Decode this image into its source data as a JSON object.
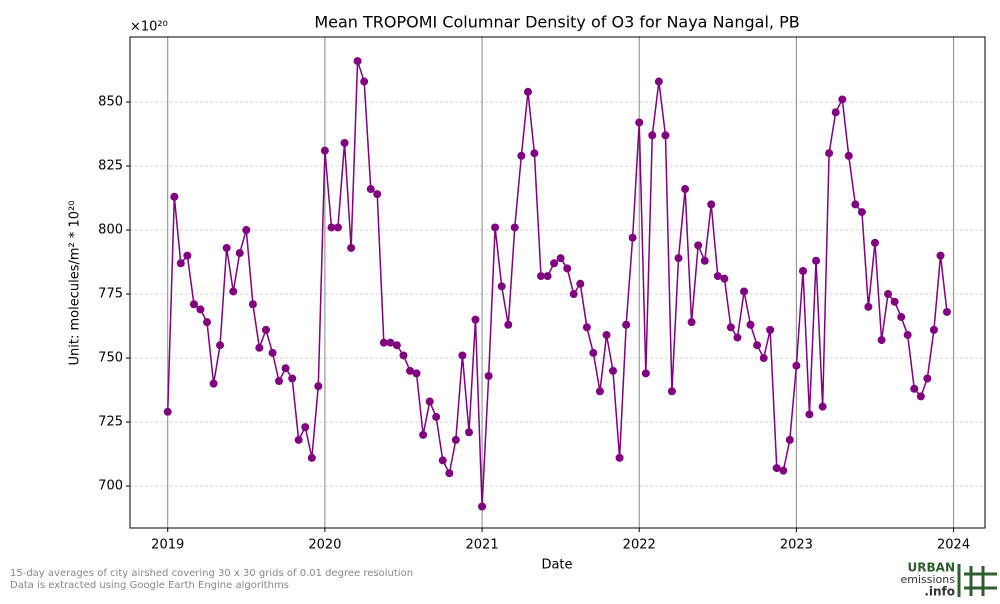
{
  "chart_data": {
    "type": "line",
    "title": "Mean TROPOMI Columnar Density of O3 for Naya Nangal, PB",
    "x_label": "Date",
    "y_label": "Unit: molecules/m² * 10²⁰",
    "y_offset_label": "×10²⁰",
    "footnote": [
      "15-day averages of city airshed covering 30 x 30 grids of 0.01 degree resolution",
      "Data is extracted using Google Earth Engine algorithms"
    ],
    "logo": [
      "URBAN",
      "emissions",
      ".info"
    ],
    "xlim": [
      2018.76,
      2024.2
    ],
    "ylim": [
      683.6,
      875.4
    ],
    "xticks": [
      2019,
      2020,
      2021,
      2022,
      2023,
      2024
    ],
    "yticks": [
      700,
      725,
      750,
      775,
      800,
      825,
      850
    ],
    "grid": true,
    "series": [
      {
        "name": "O3",
        "color": "#800080",
        "x": [
          2019,
          2019.042,
          2019.083,
          2019.125,
          2019.167,
          2019.208,
          2019.25,
          2019.292,
          2019.333,
          2019.375,
          2019.417,
          2019.458,
          2019.5,
          2019.542,
          2019.583,
          2019.625,
          2019.667,
          2019.708,
          2019.75,
          2019.792,
          2019.833,
          2019.875,
          2019.917,
          2019.958,
          2020,
          2020.042,
          2020.083,
          2020.125,
          2020.167,
          2020.208,
          2020.25,
          2020.292,
          2020.333,
          2020.375,
          2020.417,
          2020.458,
          2020.5,
          2020.542,
          2020.583,
          2020.625,
          2020.667,
          2020.708,
          2020.75,
          2020.792,
          2020.833,
          2020.875,
          2020.917,
          2020.958,
          2021,
          2021.042,
          2021.083,
          2021.125,
          2021.167,
          2021.208,
          2021.25,
          2021.292,
          2021.333,
          2021.375,
          2021.417,
          2021.458,
          2021.5,
          2021.542,
          2021.583,
          2021.625,
          2021.667,
          2021.708,
          2021.75,
          2021.792,
          2021.833,
          2021.875,
          2021.917,
          2021.958,
          2022,
          2022.042,
          2022.083,
          2022.125,
          2022.167,
          2022.208,
          2022.25,
          2022.292,
          2022.333,
          2022.375,
          2022.417,
          2022.458,
          2022.5,
          2022.542,
          2022.583,
          2022.625,
          2022.667,
          2022.708,
          2022.75,
          2022.792,
          2022.833,
          2022.875,
          2022.917,
          2022.958,
          2023,
          2023.042,
          2023.083,
          2023.125,
          2023.167,
          2023.208,
          2023.25,
          2023.292,
          2023.333,
          2023.375,
          2023.417,
          2023.458,
          2023.5,
          2023.542,
          2023.583,
          2023.625,
          2023.667,
          2023.708,
          2023.75,
          2023.792,
          2023.833,
          2023.875,
          2023.917,
          2023.958
        ],
        "values": [
          729,
          813,
          787,
          790,
          771,
          769,
          764,
          740,
          755,
          793,
          776,
          791,
          800,
          771,
          754,
          761,
          752,
          741,
          746,
          742,
          718,
          723,
          711,
          739,
          831,
          801,
          801,
          834,
          793,
          866,
          858,
          816,
          814,
          756,
          756,
          755,
          751,
          745,
          744,
          720,
          733,
          727,
          710,
          705,
          718,
          751,
          721,
          765,
          692,
          743,
          801,
          778,
          763,
          801,
          829,
          854,
          830,
          782,
          782,
          787,
          789,
          785,
          775,
          779,
          762,
          752,
          737,
          759,
          745,
          711,
          763,
          797,
          842,
          744,
          837,
          858,
          837,
          737,
          789,
          816,
          764,
          794,
          788,
          810,
          782,
          781,
          762,
          758,
          776,
          763,
          755,
          750,
          761,
          707,
          706,
          718,
          747,
          784,
          728,
          788,
          731,
          830,
          846,
          851,
          829,
          810,
          807,
          770,
          795,
          757,
          775,
          772,
          766,
          759,
          738,
          735,
          742,
          761,
          790,
          768
        ]
      }
    ]
  }
}
